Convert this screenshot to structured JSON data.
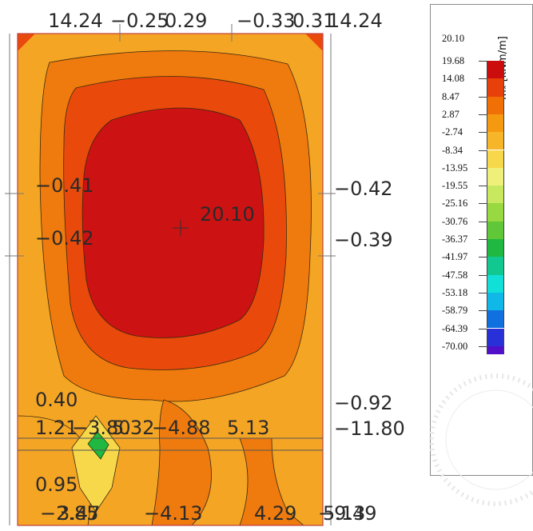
{
  "plot": {
    "top_labels": [
      "14.24",
      "−0.25",
      "0.29",
      "−0.33",
      "0.31",
      "14.24"
    ],
    "right_labels": [
      "−0.42",
      "−0.39",
      "−0.92",
      "−11.80"
    ],
    "left_labels": [
      "−0.41",
      "−0.42",
      "0.40",
      "0.95"
    ],
    "center_label": "20.10",
    "row_labels": [
      "1.21",
      "−3.80",
      "5.32",
      "−4.88",
      "5.13"
    ],
    "bottom_labels": [
      "−2.85",
      "3.47",
      "−4.13",
      "4.29",
      "−9.49",
      "5.13"
    ]
  },
  "legend": {
    "title": "mₓ [kNm/m]",
    "max_label": "20.10",
    "levels": [
      "19.68",
      "14.08",
      "8.47",
      "2.87",
      "-2.74",
      "-8.34",
      "-13.95",
      "-19.55",
      "-25.16",
      "-30.76",
      "-36.37",
      "-41.97",
      "-47.58",
      "-53.18",
      "-58.79",
      "-64.39",
      "-70.00"
    ],
    "colors": [
      "#cc0d0d",
      "#e8400a",
      "#f07006",
      "#f59a10",
      "#f7b52a",
      "#f7d84a",
      "#eef07a",
      "#c8e860",
      "#98d840",
      "#60c838",
      "#20b840",
      "#10c890",
      "#10e0d8",
      "#10b8e8",
      "#1070e0",
      "#2830d8",
      "#5010c8"
    ]
  },
  "colors": {
    "outer": "#f5a524",
    "orange": "#ef7a0d",
    "redorange": "#e94a0c",
    "red": "#cc1212",
    "yellow": "#f7d84a",
    "green": "#20b840"
  }
}
